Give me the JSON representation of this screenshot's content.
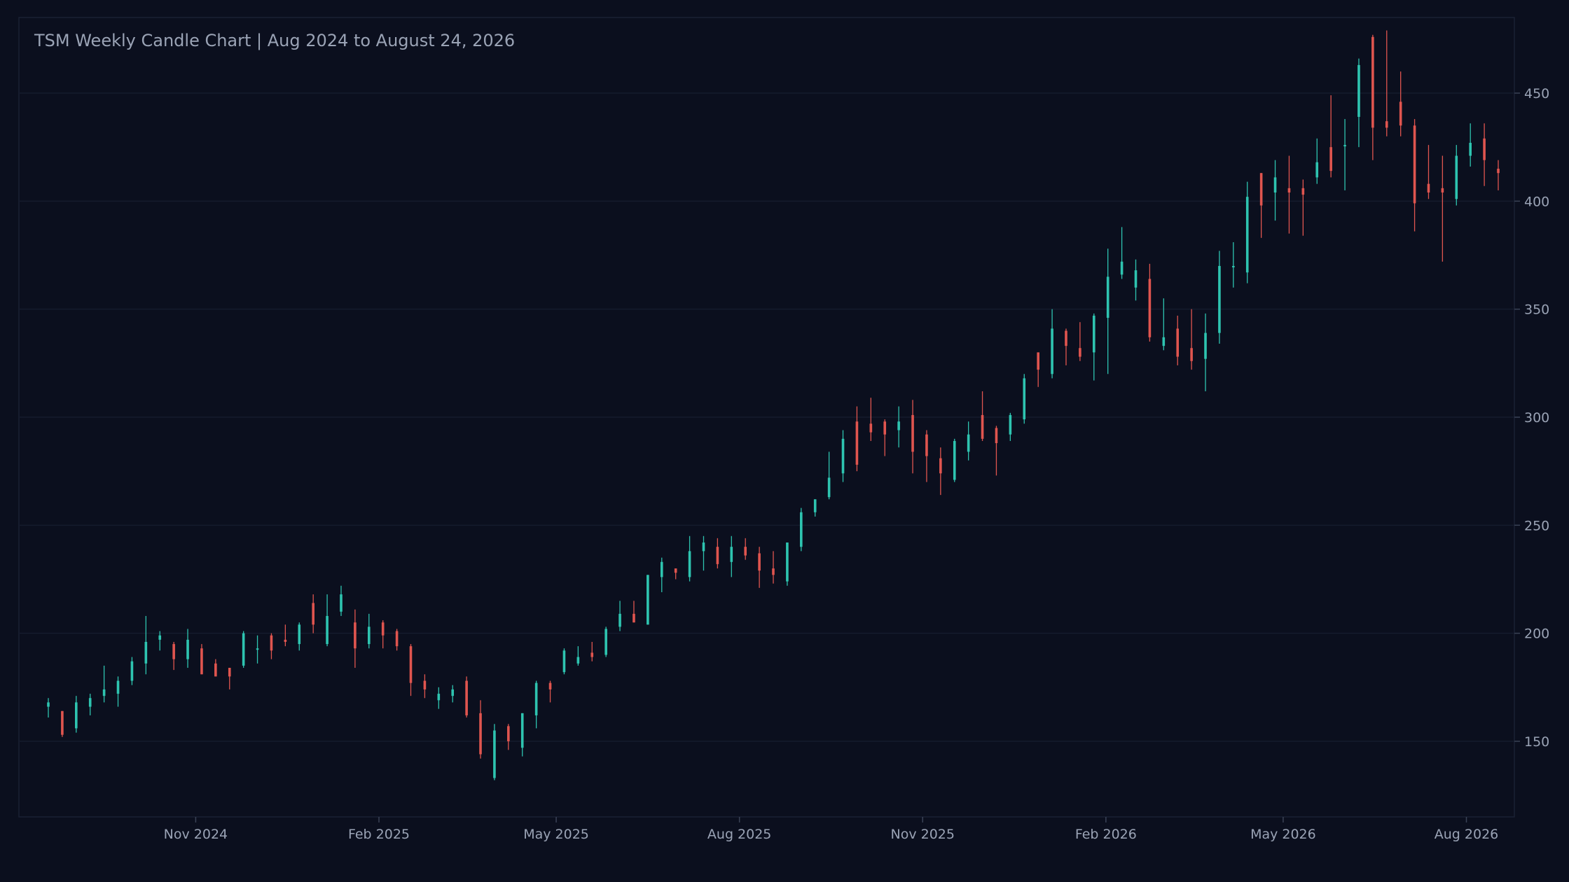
{
  "chart_data": {
    "type": "candlestick",
    "title": "TSM Weekly Candle Chart | Aug 2024 to August 24, 2026",
    "xlabel": "",
    "ylabel": "",
    "grid": true,
    "legend": "none",
    "y_axis_side": "right",
    "ylim": [
      115,
      485
    ],
    "y_ticks": [
      150,
      200,
      250,
      300,
      350,
      400,
      450
    ],
    "x_start_date": "2024-08-19",
    "x_end_date": "2026-08-24",
    "x_ticks": [
      {
        "label": "Nov 2024",
        "date": "2024-11-01"
      },
      {
        "label": "Feb 2025",
        "date": "2025-02-01"
      },
      {
        "label": "May 2025",
        "date": "2025-05-01"
      },
      {
        "label": "Aug 2025",
        "date": "2025-08-01"
      },
      {
        "label": "Nov 2025",
        "date": "2025-11-01"
      },
      {
        "label": "Feb 2026",
        "date": "2026-02-01"
      },
      {
        "label": "May 2026",
        "date": "2026-05-01"
      },
      {
        "label": "Aug 2026",
        "date": "2026-08-01"
      }
    ],
    "colors": {
      "up": "#2ec4b0",
      "down": "#e0554f",
      "background": "#0b0f1e",
      "grid": "#151b2d",
      "text": "#9aa3b5"
    },
    "candles_ohlc": [
      [
        166,
        170,
        161,
        168
      ],
      [
        164,
        164,
        152,
        153
      ],
      [
        156,
        171,
        154,
        168
      ],
      [
        166,
        172,
        162,
        170
      ],
      [
        171,
        185,
        168,
        174
      ],
      [
        172,
        180,
        166,
        178
      ],
      [
        178,
        189,
        176,
        187
      ],
      [
        186,
        208,
        181,
        196
      ],
      [
        197,
        201,
        192,
        199
      ],
      [
        195,
        196,
        183,
        188
      ],
      [
        188,
        202,
        184,
        197
      ],
      [
        193,
        195,
        181,
        181
      ],
      [
        186,
        188,
        180,
        180
      ],
      [
        184,
        184,
        174,
        180
      ],
      [
        185,
        201,
        184,
        200
      ],
      [
        193,
        199,
        186,
        193
      ],
      [
        199,
        200,
        188,
        192
      ],
      [
        197,
        204,
        194,
        196
      ],
      [
        195,
        205,
        192,
        204
      ],
      [
        214,
        218,
        200,
        204
      ],
      [
        195,
        218,
        194,
        208
      ],
      [
        210,
        222,
        208,
        218
      ],
      [
        205,
        211,
        184,
        193
      ],
      [
        195,
        209,
        193,
        203
      ],
      [
        205,
        206,
        193,
        199
      ],
      [
        201,
        202,
        192,
        194
      ],
      [
        194,
        195,
        171,
        177
      ],
      [
        178,
        181,
        170,
        174
      ],
      [
        169,
        175,
        165,
        172
      ],
      [
        171,
        176,
        168,
        174
      ],
      [
        178,
        180,
        161,
        162
      ],
      [
        163,
        169,
        142,
        144
      ],
      [
        133,
        158,
        132,
        155
      ],
      [
        157,
        158,
        146,
        150
      ],
      [
        147,
        163,
        143,
        163
      ],
      [
        162,
        178,
        156,
        177
      ],
      [
        177,
        178,
        168,
        174
      ],
      [
        182,
        193,
        181,
        192
      ],
      [
        186,
        194,
        185,
        189
      ],
      [
        191,
        196,
        187,
        189
      ],
      [
        190,
        203,
        189,
        202
      ],
      [
        203,
        215,
        201,
        209
      ],
      [
        209,
        215,
        205,
        205
      ],
      [
        204,
        227,
        204,
        227
      ],
      [
        226,
        235,
        219,
        233
      ],
      [
        230,
        230,
        225,
        228
      ],
      [
        226,
        245,
        224,
        238
      ],
      [
        238,
        245,
        229,
        242
      ],
      [
        240,
        244,
        230,
        232
      ],
      [
        233,
        245,
        226,
        240
      ],
      [
        240,
        244,
        234,
        236
      ],
      [
        237,
        240,
        221,
        229
      ],
      [
        230,
        238,
        223,
        227
      ],
      [
        224,
        242,
        222,
        242
      ],
      [
        240,
        258,
        238,
        256
      ],
      [
        256,
        262,
        254,
        262
      ],
      [
        263,
        284,
        262,
        272
      ],
      [
        274,
        294,
        270,
        290
      ],
      [
        298,
        305,
        275,
        278
      ],
      [
        297,
        309,
        289,
        293
      ],
      [
        298,
        299,
        282,
        292
      ],
      [
        294,
        305,
        286,
        298
      ],
      [
        301,
        308,
        274,
        284
      ],
      [
        292,
        294,
        270,
        282
      ],
      [
        281,
        286,
        264,
        274
      ],
      [
        271,
        290,
        270,
        289
      ],
      [
        284,
        298,
        280,
        292
      ],
      [
        301,
        312,
        289,
        290
      ],
      [
        295,
        296,
        273,
        288
      ],
      [
        292,
        302,
        289,
        301
      ],
      [
        299,
        320,
        297,
        318
      ],
      [
        330,
        330,
        314,
        322
      ],
      [
        320,
        350,
        318,
        341
      ],
      [
        340,
        341,
        324,
        333
      ],
      [
        332,
        344,
        326,
        328
      ],
      [
        330,
        348,
        317,
        347
      ],
      [
        346,
        378,
        320,
        365
      ],
      [
        366,
        388,
        364,
        372
      ],
      [
        360,
        373,
        354,
        368
      ],
      [
        364,
        371,
        335,
        337
      ],
      [
        333,
        355,
        331,
        337
      ],
      [
        341,
        347,
        324,
        328
      ],
      [
        332,
        350,
        322,
        326
      ],
      [
        327,
        348,
        312,
        339
      ],
      [
        339,
        377,
        334,
        370
      ],
      [
        370,
        381,
        360,
        370
      ],
      [
        367,
        409,
        362,
        402
      ],
      [
        413,
        413,
        383,
        398
      ],
      [
        404,
        419,
        391,
        411
      ],
      [
        406,
        421,
        385,
        404
      ],
      [
        406,
        410,
        384,
        403
      ],
      [
        411,
        429,
        408,
        418
      ],
      [
        425,
        449,
        411,
        414
      ],
      [
        426,
        438,
        405,
        426
      ],
      [
        439,
        466,
        425,
        463
      ],
      [
        476,
        477,
        419,
        434
      ],
      [
        437,
        479,
        430,
        434
      ],
      [
        446,
        460,
        430,
        435
      ],
      [
        435,
        438,
        386,
        399
      ],
      [
        408,
        426,
        401,
        404
      ],
      [
        406,
        421,
        372,
        404
      ],
      [
        401,
        426,
        398,
        421
      ],
      [
        421,
        436,
        416,
        427
      ],
      [
        429,
        436,
        407,
        419
      ],
      [
        415,
        419,
        405,
        413
      ]
    ]
  }
}
